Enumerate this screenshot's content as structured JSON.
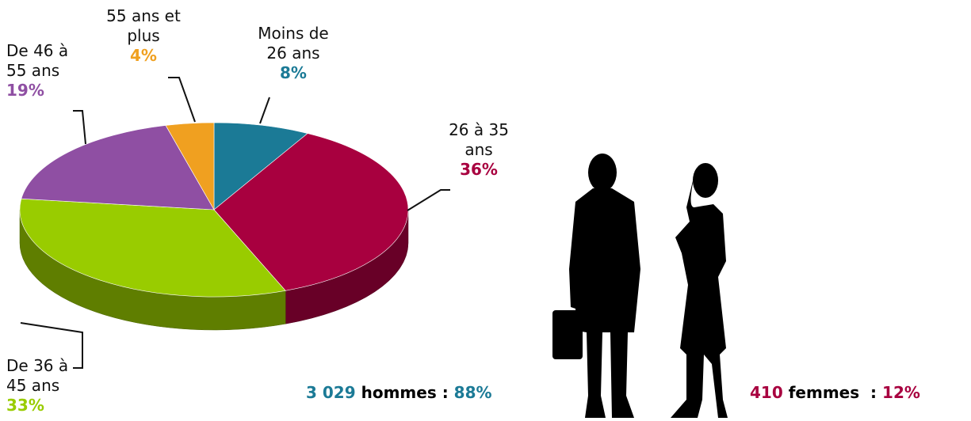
{
  "chart_data": {
    "type": "pie",
    "categories": [
      "Moins de 26 ans",
      "26 à 35 ans",
      "De 36 à 45 ans",
      "De 46 à 55 ans",
      "55 ans et plus"
    ],
    "values": [
      8,
      36,
      33,
      19,
      4
    ],
    "value_labels": [
      "8%",
      "36%",
      "33%",
      "19%",
      "4%"
    ],
    "colors": [
      "#1b7a96",
      "#a8003f",
      "#99cc00",
      "#8f4fa3",
      "#f0a020"
    ]
  },
  "gender": {
    "men": {
      "count": "3 029",
      "label": "hommes :",
      "share": "88%"
    },
    "women": {
      "count": "410",
      "label": "femmes  :",
      "share": "12%"
    }
  }
}
